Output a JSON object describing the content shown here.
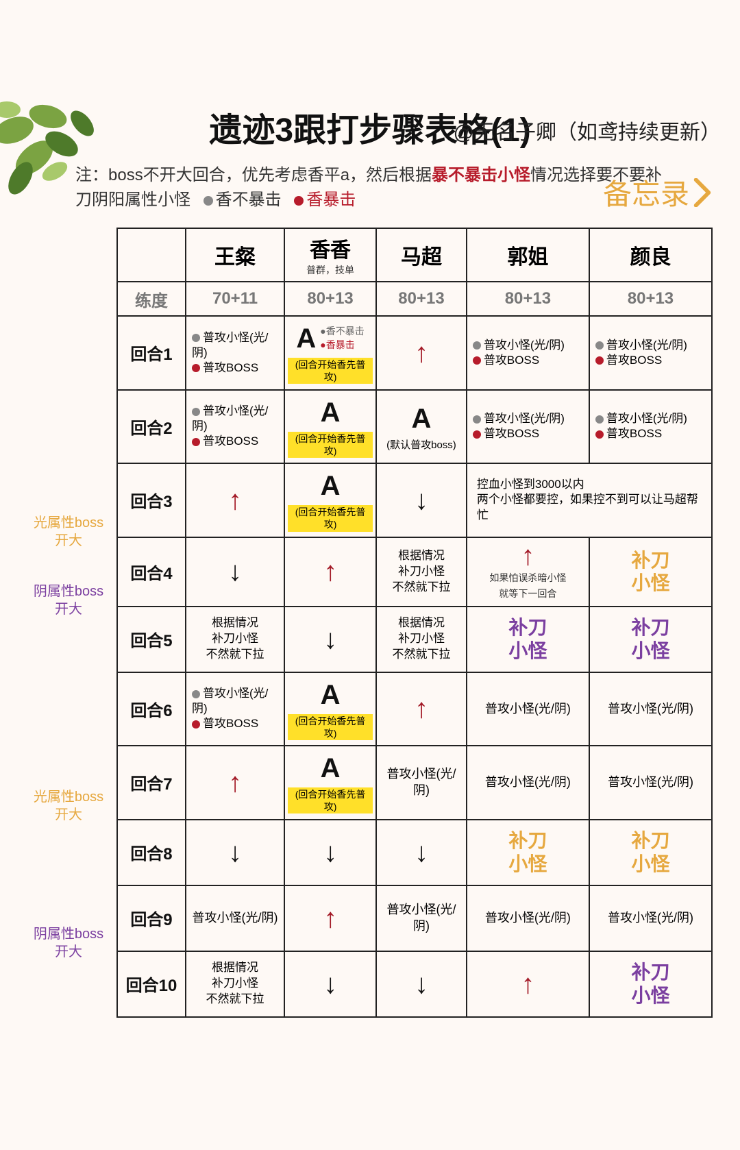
{
  "credit": "@无名子卿（如鸢持续更新）",
  "memo": "备忘录",
  "title": "遗迹3跟打步骤表格(1)",
  "note_prefix": "注：boss不开大回合，优先考虑香平a，然后根据",
  "note_hl": "暴不暴击小怪",
  "note_suffix": "情况选择要不要补刀阴阳属性小怪",
  "legend_no_crit": "香不暴击",
  "legend_crit": "香暴击",
  "level_label": "练度",
  "xx_sub": "普群，技单",
  "headers": [
    "王粲",
    "香香",
    "马超",
    "郭姐",
    "颜良"
  ],
  "levels": [
    "70+11",
    "80+13",
    "80+13",
    "80+13",
    "80+13"
  ],
  "rounds": [
    "回合1",
    "回合2",
    "回合3",
    "回合4",
    "回合5",
    "回合6",
    "回合7",
    "回合8",
    "回合9",
    "回合10"
  ],
  "side_light": "光属性boss开大",
  "side_dark": "阴属性boss开大",
  "atk_mob": "普攻小怪(光/阴)",
  "atk_boss": "普攻BOSS",
  "hl_text": "(回合开始香先普攻)",
  "default_boss": "(默认普攻boss)",
  "r3_merge": "控血小怪到3000以内\n两个小怪都要控，如果控不到可以让马超帮忙",
  "situational": "根据情况\n补刀小怪\n不然就下拉",
  "r4_guo_sub": "如果怕误杀暗小怪\n就等下一回合",
  "fill_mob": "补刀\n小怪",
  "plain_mob": "普攻小怪(光/阴)",
  "colors": {
    "orange": "#e6a83f",
    "purple": "#7b3fa0",
    "red": "#a31a27",
    "hl": "#ffe029"
  }
}
